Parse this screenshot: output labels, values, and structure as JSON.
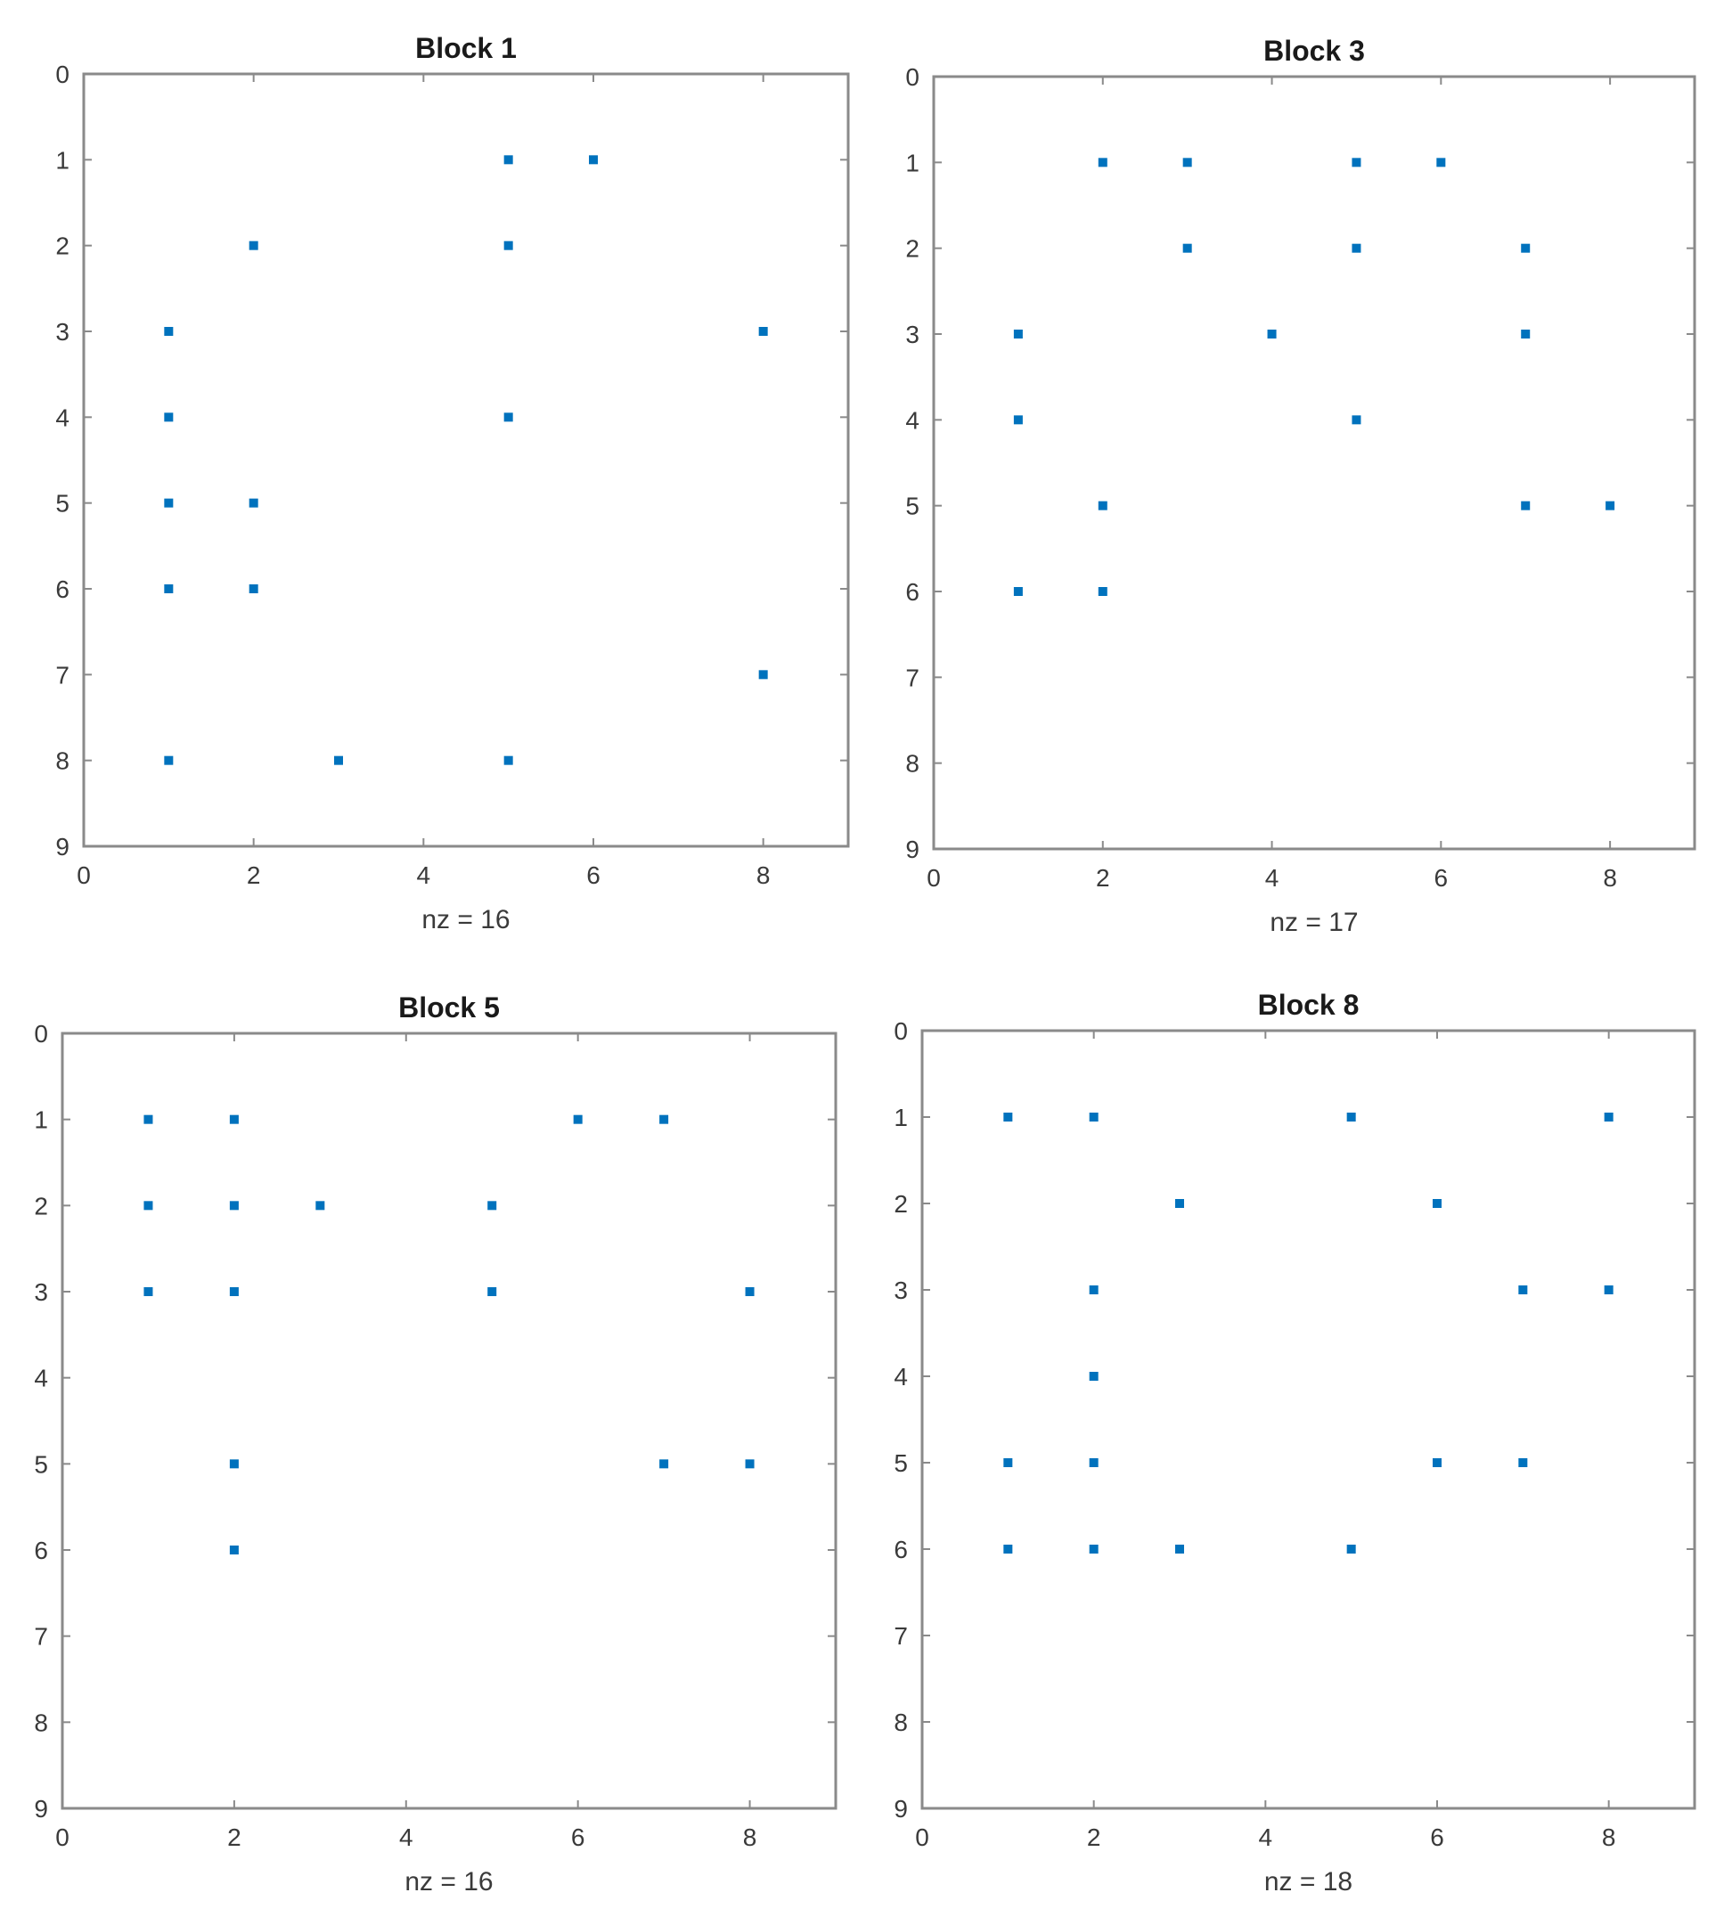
{
  "chart_data": [
    {
      "type": "scatter",
      "title": "Block 1",
      "xlabel": "nz = 16",
      "xlim": [
        0,
        9
      ],
      "ylim": [
        0,
        9
      ],
      "y_reversed": true,
      "xticks": [
        "0",
        "2",
        "4",
        "6",
        "8"
      ],
      "yticks": [
        "0",
        "1",
        "2",
        "3",
        "4",
        "5",
        "6",
        "7",
        "8",
        "9"
      ],
      "points": [
        [
          5,
          1
        ],
        [
          6,
          1
        ],
        [
          2,
          2
        ],
        [
          5,
          2
        ],
        [
          1,
          3
        ],
        [
          8,
          3
        ],
        [
          1,
          4
        ],
        [
          5,
          4
        ],
        [
          1,
          5
        ],
        [
          2,
          5
        ],
        [
          1,
          6
        ],
        [
          2,
          6
        ],
        [
          8,
          7
        ],
        [
          1,
          8
        ],
        [
          3,
          8
        ],
        [
          5,
          8
        ]
      ],
      "marker_color": "#0072bd"
    },
    {
      "type": "scatter",
      "title": "Block 3",
      "xlabel": "nz = 17",
      "xlim": [
        0,
        9
      ],
      "ylim": [
        0,
        9
      ],
      "y_reversed": true,
      "xticks": [
        "0",
        "2",
        "4",
        "6",
        "8"
      ],
      "yticks": [
        "0",
        "1",
        "2",
        "3",
        "4",
        "5",
        "6",
        "7",
        "8",
        "9"
      ],
      "points": [
        [
          2,
          1
        ],
        [
          3,
          1
        ],
        [
          5,
          1
        ],
        [
          6,
          1
        ],
        [
          3,
          2
        ],
        [
          5,
          2
        ],
        [
          7,
          2
        ],
        [
          1,
          3
        ],
        [
          4,
          3
        ],
        [
          7,
          3
        ],
        [
          1,
          4
        ],
        [
          5,
          4
        ],
        [
          2,
          5
        ],
        [
          7,
          5
        ],
        [
          8,
          5
        ],
        [
          1,
          6
        ],
        [
          2,
          6
        ]
      ],
      "marker_color": "#0072bd"
    },
    {
      "type": "scatter",
      "title": "Block 5",
      "xlabel": "nz = 16",
      "xlim": [
        0,
        9
      ],
      "ylim": [
        0,
        9
      ],
      "y_reversed": true,
      "xticks": [
        "0",
        "2",
        "4",
        "6",
        "8"
      ],
      "yticks": [
        "0",
        "1",
        "2",
        "3",
        "4",
        "5",
        "6",
        "7",
        "8",
        "9"
      ],
      "points": [
        [
          1,
          1
        ],
        [
          2,
          1
        ],
        [
          6,
          1
        ],
        [
          7,
          1
        ],
        [
          1,
          2
        ],
        [
          2,
          2
        ],
        [
          3,
          2
        ],
        [
          5,
          2
        ],
        [
          1,
          3
        ],
        [
          2,
          3
        ],
        [
          5,
          3
        ],
        [
          8,
          3
        ],
        [
          2,
          5
        ],
        [
          7,
          5
        ],
        [
          8,
          5
        ],
        [
          2,
          6
        ]
      ],
      "marker_color": "#0072bd"
    },
    {
      "type": "scatter",
      "title": "Block 8",
      "xlabel": "nz = 18",
      "xlim": [
        0,
        9
      ],
      "ylim": [
        0,
        9
      ],
      "y_reversed": true,
      "xticks": [
        "0",
        "2",
        "4",
        "6",
        "8"
      ],
      "yticks": [
        "0",
        "1",
        "2",
        "3",
        "4",
        "5",
        "6",
        "7",
        "8",
        "9"
      ],
      "points": [
        [
          1,
          1
        ],
        [
          2,
          1
        ],
        [
          5,
          1
        ],
        [
          8,
          1
        ],
        [
          3,
          2
        ],
        [
          6,
          2
        ],
        [
          2,
          3
        ],
        [
          7,
          3
        ],
        [
          8,
          3
        ],
        [
          2,
          4
        ],
        [
          1,
          5
        ],
        [
          2,
          5
        ],
        [
          6,
          5
        ],
        [
          7,
          5
        ],
        [
          1,
          6
        ],
        [
          2,
          6
        ],
        [
          3,
          6
        ],
        [
          5,
          6
        ]
      ],
      "marker_color": "#0072bd"
    }
  ]
}
